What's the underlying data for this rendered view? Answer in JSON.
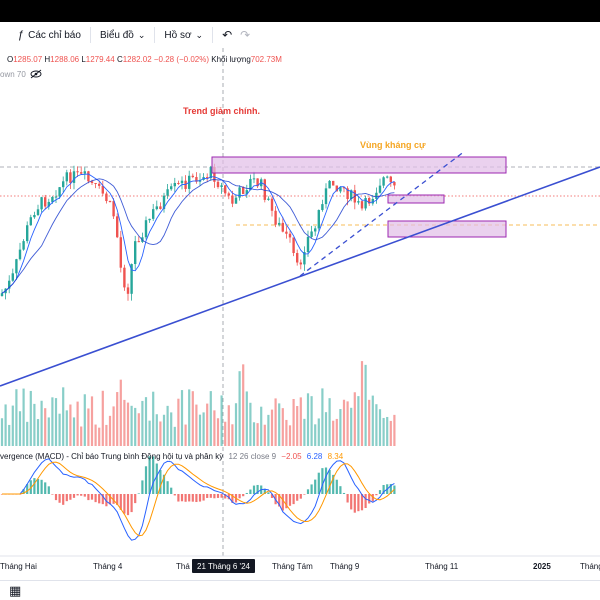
{
  "toolbar": {
    "indicators_label": "Các chỉ báo",
    "chart_label": "Biểu đồ",
    "profile_label": "Hồ sơ",
    "undo_icon": "undo-icon",
    "redo_icon": "redo-icon"
  },
  "ohlc": {
    "o_value": "1285.07",
    "h_value": "1288.06",
    "l_value": "1279.44",
    "c_value": "1282.02",
    "change": "−0.28 (−0.02%)",
    "volume_label": "Khối lượng",
    "volume_value": "702.73M",
    "subline": "own 70"
  },
  "annotations": {
    "trend": "Trend giảm chính.",
    "resistance": "Vùng kháng cự"
  },
  "macd": {
    "label": "vergence (MACD) - Chỉ báo Trung bình Động hội tụ và phân kỳ",
    "params": "12 26 close 9",
    "hist_value": "−2.05",
    "macd_value": "6.28",
    "signal_value": "8.34"
  },
  "x_axis": {
    "labels": [
      "Tháng Hai",
      "Tháng 4",
      "Thá",
      "Tháng Tám",
      "Tháng 9",
      "Tháng 11",
      "2025",
      "Tháng"
    ],
    "crosshair_label": "21 Tháng 6 '24"
  },
  "colors": {
    "up": "#26a69a",
    "down": "#ef5350",
    "ma1": "#2962ff",
    "ma2": "#2962ff",
    "trendline": "#3a4fd1",
    "zone_fill": "#e1bee7",
    "zone_stroke": "#9c27b0",
    "trend_text": "#e53935",
    "resistance_text": "#f5a623",
    "signal": "#ff9800"
  }
}
